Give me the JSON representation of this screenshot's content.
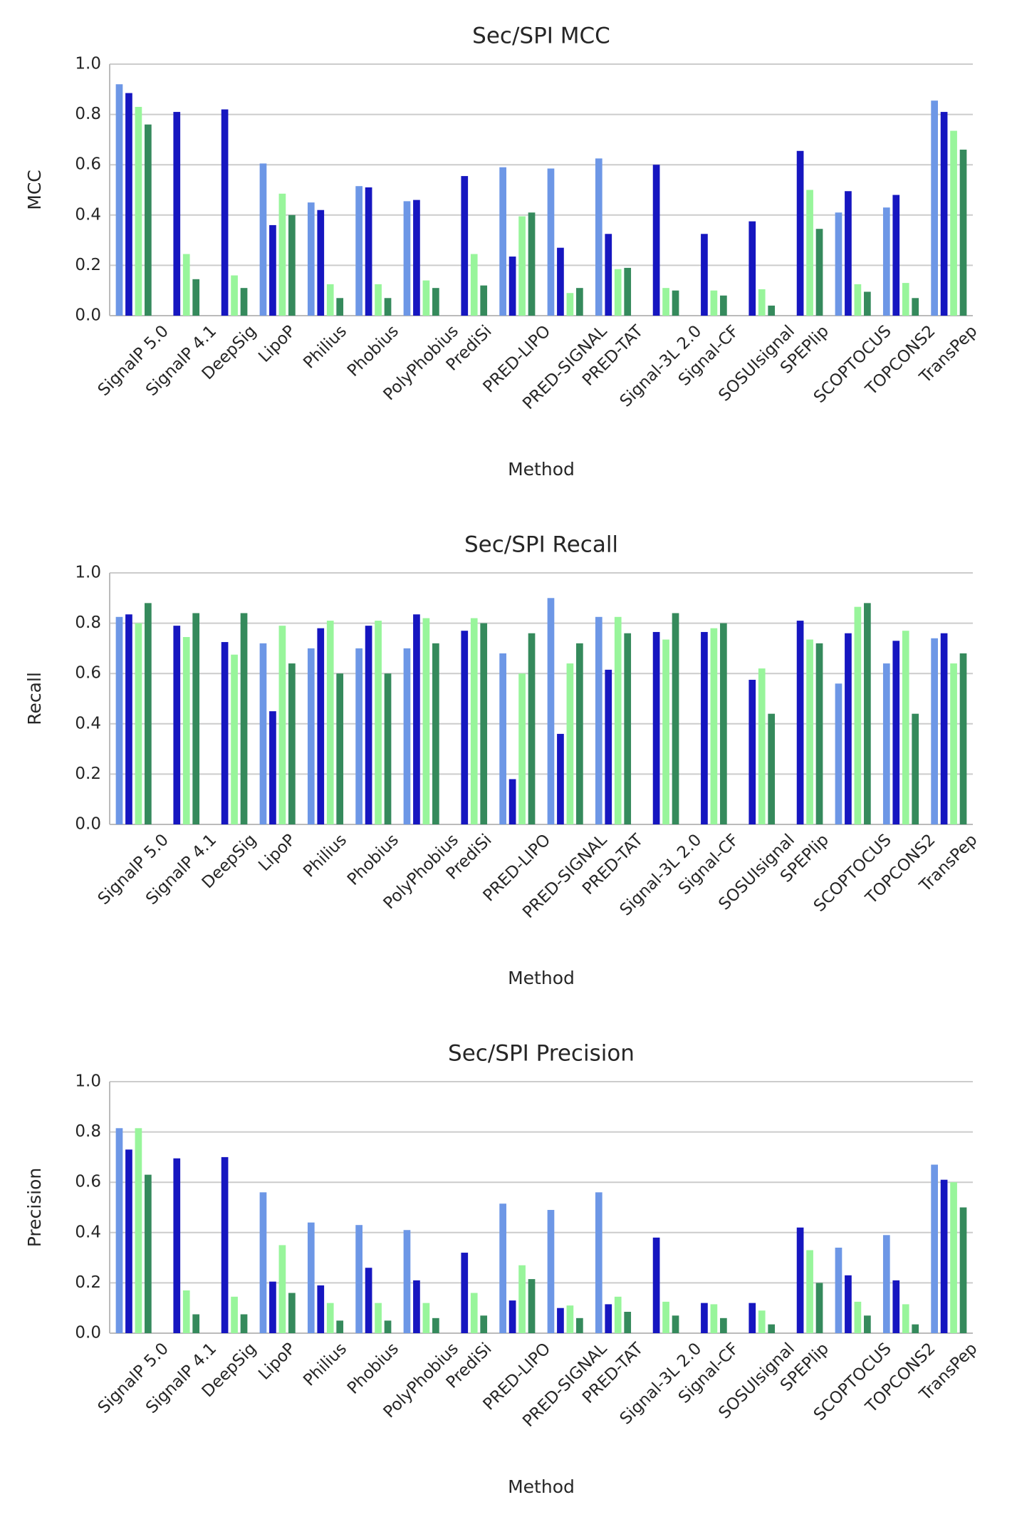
{
  "chart_data": [
    {
      "type": "bar",
      "title": "Sec/SPI MCC",
      "x_label": "Method",
      "y_label": "MCC",
      "categories": [
        "SignalP 5.0",
        "SignalP 4.1",
        "DeepSig",
        "LipoP",
        "Philius",
        "Phobius",
        "PolyPhobius",
        "PrediSi",
        "PRED-LIPO",
        "PRED-SIGNAL",
        "PRED-TAT",
        "Signal-3L 2.0",
        "Signal-CF",
        "SOSUIsignal",
        "SPEPlip",
        "SCOPTOCUS",
        "TOPCONS2",
        "TransPep"
      ],
      "series": [
        {
          "color": "#6d97e6",
          "values": [
            0.92,
            null,
            null,
            0.605,
            0.45,
            0.515,
            0.455,
            null,
            0.59,
            0.585,
            0.625,
            null,
            null,
            null,
            null,
            0.41,
            0.43,
            0.855
          ]
        },
        {
          "color": "#1616c0",
          "values": [
            0.885,
            0.81,
            0.82,
            0.36,
            0.42,
            0.51,
            0.46,
            0.555,
            0.235,
            0.27,
            0.325,
            0.6,
            0.325,
            0.375,
            0.655,
            0.495,
            0.48,
            0.81
          ]
        },
        {
          "color": "#98f59b",
          "values": [
            0.83,
            0.245,
            0.16,
            0.485,
            0.125,
            0.125,
            0.14,
            0.245,
            0.395,
            0.09,
            0.185,
            0.11,
            0.1,
            0.105,
            0.5,
            0.125,
            0.13,
            0.735
          ]
        },
        {
          "color": "#358a5c",
          "values": [
            0.76,
            0.145,
            0.11,
            0.4,
            0.07,
            0.07,
            0.11,
            0.12,
            0.41,
            0.11,
            0.19,
            0.1,
            0.08,
            0.04,
            0.345,
            0.095,
            0.07,
            0.66
          ]
        }
      ],
      "ylim": [
        0,
        1
      ],
      "yticks": [
        {
          "value": 0,
          "label": "0.0"
        },
        {
          "value": 0.2,
          "label": "0.2"
        },
        {
          "value": 0.4,
          "label": "0.4"
        },
        {
          "value": 0.6,
          "label": "0.6"
        },
        {
          "value": 0.8,
          "label": "0.8"
        },
        {
          "value": 1,
          "label": "1.0"
        }
      ],
      "grid": true
    },
    {
      "type": "bar",
      "title": "Sec/SPI Recall",
      "x_label": "Method",
      "y_label": "Recall",
      "categories": [
        "SignalP 5.0",
        "SignalP 4.1",
        "DeepSig",
        "LipoP",
        "Philius",
        "Phobius",
        "PolyPhobius",
        "PrediSi",
        "PRED-LIPO",
        "PRED-SIGNAL",
        "PRED-TAT",
        "Signal-3L 2.0",
        "Signal-CF",
        "SOSUIsignal",
        "SPEPlip",
        "SCOPTOCUS",
        "TOPCONS2",
        "TransPep"
      ],
      "series": [
        {
          "color": "#6d97e6",
          "values": [
            0.825,
            null,
            null,
            0.72,
            0.7,
            0.7,
            0.7,
            null,
            0.68,
            0.9,
            0.825,
            null,
            null,
            null,
            null,
            0.56,
            0.64,
            0.74
          ]
        },
        {
          "color": "#1616c0",
          "values": [
            0.835,
            0.79,
            0.725,
            0.45,
            0.78,
            0.79,
            0.835,
            0.77,
            0.18,
            0.36,
            0.615,
            0.765,
            0.765,
            0.575,
            0.81,
            0.76,
            0.73,
            0.76
          ]
        },
        {
          "color": "#98f59b",
          "values": [
            0.8,
            0.745,
            0.675,
            0.79,
            0.81,
            0.81,
            0.82,
            0.82,
            0.6,
            0.64,
            0.825,
            0.735,
            0.78,
            0.62,
            0.735,
            0.865,
            0.77,
            0.64
          ]
        },
        {
          "color": "#358a5c",
          "values": [
            0.88,
            0.84,
            0.84,
            0.64,
            0.6,
            0.6,
            0.72,
            0.8,
            0.76,
            0.72,
            0.76,
            0.84,
            0.8,
            0.44,
            0.72,
            0.88,
            0.44,
            0.68
          ]
        }
      ],
      "ylim": [
        0,
        1
      ],
      "yticks": [
        {
          "value": 0,
          "label": "0.0"
        },
        {
          "value": 0.2,
          "label": "0.2"
        },
        {
          "value": 0.4,
          "label": "0.4"
        },
        {
          "value": 0.6,
          "label": "0.6"
        },
        {
          "value": 0.8,
          "label": "0.8"
        },
        {
          "value": 1,
          "label": "1.0"
        }
      ],
      "grid": true
    },
    {
      "type": "bar",
      "title": "Sec/SPI Precision",
      "x_label": "Method",
      "y_label": "Precision",
      "categories": [
        "SignalP 5.0",
        "SignalP 4.1",
        "DeepSig",
        "LipoP",
        "Philius",
        "Phobius",
        "PolyPhobius",
        "PrediSi",
        "PRED-LIPO",
        "PRED-SIGNAL",
        "PRED-TAT",
        "Signal-3L 2.0",
        "Signal-CF",
        "SOSUIsignal",
        "SPEPlip",
        "SCOPTOCUS",
        "TOPCONS2",
        "TransPep"
      ],
      "series": [
        {
          "color": "#6d97e6",
          "values": [
            0.815,
            null,
            null,
            0.56,
            0.44,
            0.43,
            0.41,
            null,
            0.515,
            0.49,
            0.56,
            null,
            null,
            null,
            null,
            0.34,
            0.39,
            0.67
          ]
        },
        {
          "color": "#1616c0",
          "values": [
            0.73,
            0.695,
            0.7,
            0.205,
            0.19,
            0.26,
            0.21,
            0.32,
            0.13,
            0.1,
            0.115,
            0.38,
            0.12,
            0.12,
            0.42,
            0.23,
            0.21,
            0.61
          ]
        },
        {
          "color": "#98f59b",
          "values": [
            0.815,
            0.17,
            0.145,
            0.35,
            0.12,
            0.12,
            0.12,
            0.16,
            0.27,
            0.11,
            0.145,
            0.125,
            0.115,
            0.09,
            0.33,
            0.125,
            0.115,
            0.6
          ]
        },
        {
          "color": "#358a5c",
          "values": [
            0.63,
            0.075,
            0.075,
            0.16,
            0.05,
            0.05,
            0.06,
            0.07,
            0.215,
            0.06,
            0.085,
            0.07,
            0.06,
            0.035,
            0.2,
            0.07,
            0.035,
            0.5
          ]
        }
      ],
      "ylim": [
        0,
        1
      ],
      "yticks": [
        {
          "value": 0,
          "label": "0.0"
        },
        {
          "value": 0.2,
          "label": "0.2"
        },
        {
          "value": 0.4,
          "label": "0.4"
        },
        {
          "value": 0.6,
          "label": "0.6"
        },
        {
          "value": 0.8,
          "label": "0.8"
        },
        {
          "value": 1,
          "label": "1.0"
        }
      ],
      "grid": true
    }
  ]
}
